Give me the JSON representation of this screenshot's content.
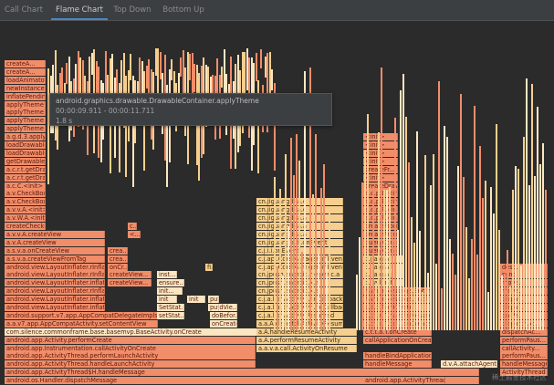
{
  "tabs": [
    {
      "label": "Call Chart"
    },
    {
      "label": "Flame Chart"
    },
    {
      "label": "Top Down"
    },
    {
      "label": "Bottom Up"
    }
  ],
  "active_tab": "Flame Chart",
  "tooltip": {
    "method": "android.graphics.drawable.DrawableContainer.applyTheme",
    "range": "00:00:09.911 - 00:00:11.711",
    "duration": "1.8 s"
  },
  "watermark": "稀土掘金技术社区",
  "colors": {
    "app_frame": "#f28d6a",
    "lib_frame": "#f6cf8e",
    "light_frame": "#fbe6c2",
    "background": "#2b2b2b"
  },
  "frames": [
    {
      "label": "android.os.Handler.dispatchMessage",
      "col": "app"
    },
    {
      "label": "android.app.ActivityThread$H.handleMessage",
      "col": "app"
    },
    {
      "label": "android.app.ActivityThread.handleLaunchActivity",
      "col": "app"
    },
    {
      "label": "android.app.ActivityThread.performLaunchActivity",
      "col": "app"
    },
    {
      "label": "android.app.Instrumentation.callActivityOnCreate",
      "col": "app"
    },
    {
      "label": "android.app.Activity.performCreate",
      "col": "app"
    },
    {
      "label": "com.silence.commonframe.base.basemvp.BaseActivity.onCreate",
      "col": "light"
    },
    {
      "label": "a.a.v7.app.AppCompatActivity.setContentView",
      "col": "app"
    },
    {
      "label": "android.support.v7.app.AppCompatDelegateImplset.ContentView",
      "col": "app"
    },
    {
      "label": "android.view.LayoutInflater.inflate",
      "col": "app"
    },
    {
      "label": "android.view.LayoutInflater.inflate",
      "col": "app"
    },
    {
      "label": "android.view.LayoutInflater.rInflateChildren",
      "col": "app"
    },
    {
      "label": "android.view.LayoutInflater.inflate",
      "col": "app"
    },
    {
      "label": "android.view.LayoutInflater.rInflateChildren",
      "col": "app"
    },
    {
      "label": "android.view.LayoutInflater.rInflate",
      "col": "app"
    },
    {
      "label": "a.s.v.a.createViewFromTag",
      "col": "app"
    },
    {
      "label": "a.s.v.a.onCreateView",
      "col": "app"
    },
    {
      "label": "a.v.A.createView",
      "col": "app"
    },
    {
      "label": "a.v.v.A.createView",
      "col": "app"
    },
    {
      "label": "createCheckBox",
      "col": "app"
    },
    {
      "label": "a.v.W.A.<init>",
      "col": "app"
    },
    {
      "label": "a.v.v.A.<init>",
      "col": "app"
    },
    {
      "label": "a.v.CheckBox.<init>",
      "col": "app"
    },
    {
      "label": "a.v.CheckBox.<init>",
      "col": "app"
    },
    {
      "label": "a.c.C.<init>",
      "col": "app"
    },
    {
      "label": "a.c.r.t.getDrawable",
      "col": "app"
    },
    {
      "label": "a.c.r.t.getDrawable",
      "col": "app"
    },
    {
      "label": "getDrawableForD...",
      "col": "app"
    },
    {
      "label": "loadDrawable",
      "col": "app"
    },
    {
      "label": "loadDrawable",
      "col": "app"
    },
    {
      "label": "a.g.d.3.applyTh...",
      "col": "app"
    },
    {
      "label": "applyTheme",
      "col": "app"
    },
    {
      "label": "applyTheme",
      "col": "app"
    },
    {
      "label": "applyTheme",
      "col": "app"
    },
    {
      "label": "applyTheme",
      "col": "app"
    },
    {
      "label": "inflatePending...",
      "col": "app"
    },
    {
      "label": "newInstance",
      "col": "app"
    },
    {
      "label": "loadAnimator",
      "col": "app"
    },
    {
      "label": "createA...",
      "col": "app"
    },
    {
      "label": "createA...",
      "col": "app"
    }
  ],
  "mid_frames": [
    {
      "label": "onCreate",
      "col": "light"
    },
    {
      "label": "doBefor...",
      "col": "light"
    },
    {
      "label": "findVie...",
      "col": "light"
    },
    {
      "label": "setStat...",
      "col": "light"
    },
    {
      "label": "SetStat...",
      "col": "light"
    },
    {
      "label": "init",
      "col": "light"
    },
    {
      "label": "init",
      "col": "light"
    },
    {
      "label": "put",
      "col": "light"
    },
    {
      "label": "put",
      "col": "light"
    }
  ],
  "mid_frames2": [
    {
      "label": "createView...",
      "col": "app"
    },
    {
      "label": "createView...",
      "col": "app"
    },
    {
      "label": "onCr...",
      "col": "app"
    },
    {
      "label": "crea...",
      "col": "app"
    },
    {
      "label": "crea...",
      "col": "app"
    },
    {
      "label": "<...",
      "col": "app"
    },
    {
      "label": "c...",
      "col": "app"
    },
    {
      "label": "fi...",
      "col": "lib"
    },
    {
      "label": "ensure...",
      "col": "light"
    },
    {
      "label": "init...",
      "col": "light"
    },
    {
      "label": "inst...",
      "col": "light"
    }
  ],
  "center_frames": [
    {
      "label": "a.a.v.a.call.ActivityOnResume",
      "col": "lib"
    },
    {
      "label": "a.A.performResumeActivity",
      "col": "lib"
    },
    {
      "label": "a.A.handleResumeActivity",
      "col": "lib"
    },
    {
      "label": "a.a.A.dispatchActivityResumed",
      "col": "lib"
    },
    {
      "label": "c.j.a.l.onActivityResumed",
      "col": "lib"
    },
    {
      "label": "c.j.a.l.a.onActivityLifeCallback",
      "col": "lib"
    },
    {
      "label": "c.j.a.l.onActivityLifeCallback",
      "col": "lib"
    },
    {
      "label": "cn.jpush.android.k.a",
      "col": "lib"
    },
    {
      "label": "cn.jpush.android.k.a",
      "col": "lib"
    },
    {
      "label": "cn.jpush.android.helper.c.a",
      "col": "lib"
    },
    {
      "label": "c.j.api.CoreManager.onEvent",
      "col": "lib"
    },
    {
      "label": "c.j.api.CoreManager.onEvent",
      "col": "lib"
    },
    {
      "label": "c.j.i.i.onEvent",
      "col": "lib"
    },
    {
      "label": "cn.jiguang.c.b.onEvent",
      "col": "lib"
    },
    {
      "label": "cn.jiguang.b.a.a",
      "col": "lib"
    },
    {
      "label": "cn.jiguang.b.a.a",
      "col": "lib"
    },
    {
      "label": "cn.jiguang.b.a.a",
      "col": "lib"
    },
    {
      "label": "cn.jiguang.b.a.c",
      "col": "lib"
    },
    {
      "label": "cn.jiguang.b.a.c",
      "col": "lib"
    }
  ],
  "right_frames": [
    {
      "label": "d.v.A.attachAgent",
      "col": "light"
    },
    {
      "label": "handleMessage",
      "col": "app"
    },
    {
      "label": "handleBindApplication",
      "col": "app"
    },
    {
      "label": "callApplicationOnCrea...",
      "col": "app"
    },
    {
      "label": "c.t.t.a.T.onCreate",
      "col": "app"
    },
    {
      "label": "c.t.t.a.T.cal.l.onCreate",
      "col": "app"
    },
    {
      "label": "c.t.t.e.T.handleMessage",
      "col": "app"
    },
    {
      "label": "c.s.c.T.onCreate",
      "col": "app"
    },
    {
      "label": "handleMessage.Impl",
      "col": "app"
    },
    {
      "label": "handleMessage.Snoinl...",
      "col": "app"
    },
    {
      "label": "c.j.a.l.init",
      "col": "lib"
    },
    {
      "label": "c.j.a.g.a.j",
      "col": "lib"
    },
    {
      "label": "c.j.a.g.a.l",
      "col": "lib"
    },
    {
      "label": "c.j.a.g.a.l",
      "col": "lib"
    },
    {
      "label": "queryConten...",
      "col": "app"
    },
    {
      "label": "queryConten...",
      "col": "app"
    },
    {
      "label": "createFromP...",
      "col": "app"
    },
    {
      "label": "createFromP...",
      "col": "app"
    },
    {
      "label": "a.c.p.P.<init>",
      "col": "app"
    },
    {
      "label": "a.c.p.P.<init>",
      "col": "app"
    },
    {
      "label": "a.c.p.B.<init>",
      "col": "app"
    },
    {
      "label": "a.c.p.B.<init>",
      "col": "app"
    },
    {
      "label": "createDrawa...",
      "col": "app"
    },
    {
      "label": "<init>",
      "col": "app"
    },
    {
      "label": "createFr...",
      "col": "app"
    },
    {
      "label": "<init>",
      "col": "app"
    },
    {
      "label": "<init>",
      "col": "app"
    },
    {
      "label": "<init>",
      "col": "app"
    },
    {
      "label": "<init>",
      "col": "app"
    }
  ],
  "far_right": [
    {
      "label": "ActivityThread -wrap1",
      "col": "app"
    },
    {
      "label": "handleMessage",
      "col": "app"
    },
    {
      "label": "performPaus...",
      "col": "app"
    },
    {
      "label": "callActivity...",
      "col": "app"
    },
    {
      "label": "performPaus...",
      "col": "app"
    },
    {
      "label": "dispatchAc...",
      "col": "app"
    },
    {
      "label": "dispatchAc...",
      "col": "app"
    },
    {
      "label": "on.Pa...",
      "col": "app"
    },
    {
      "label": "dispa...",
      "col": "app"
    },
    {
      "label": "dispa...",
      "col": "app"
    },
    {
      "label": "move...",
      "col": "app"
    },
    {
      "label": "move...",
      "col": "app"
    },
    {
      "label": "sync",
      "col": "app"
    },
    {
      "label": "desc...",
      "col": "app"
    }
  ],
  "bottom_right": [
    {
      "label": "android.app.ActivityThread -wrap11",
      "col": "app"
    }
  ]
}
